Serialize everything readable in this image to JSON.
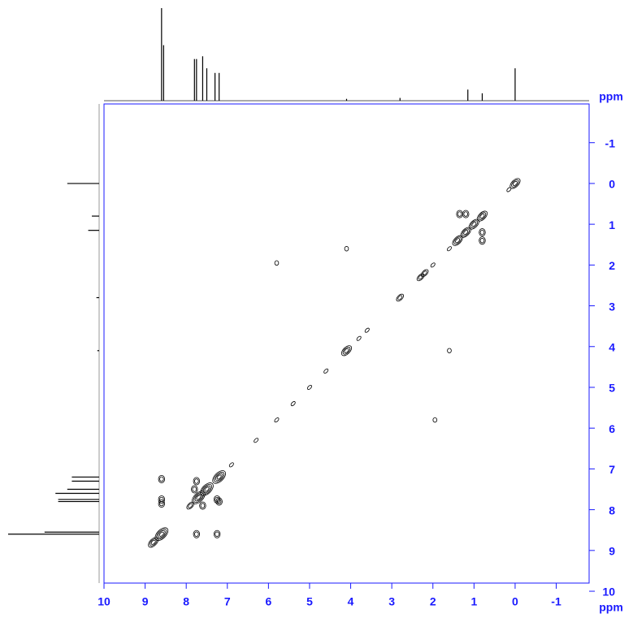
{
  "chart_data": {
    "type": "nmr-2d",
    "xlabel": "ppm",
    "ylabel": "ppm",
    "xlim": [
      10,
      -1.8
    ],
    "ylim": [
      -1.95,
      9.8
    ],
    "xticks": [
      10,
      9,
      8,
      7,
      6,
      5,
      4,
      3,
      2,
      1,
      0,
      -1
    ],
    "yticks": [
      -1,
      0,
      1,
      2,
      3,
      4,
      5,
      6,
      7,
      8,
      9,
      10
    ],
    "axis_color": "#1a1aff",
    "color": "#000000",
    "x": [
      0.0,
      0.15,
      0.8,
      1.0,
      1.2,
      1.4,
      1.6,
      2.0,
      2.2,
      2.3,
      2.8,
      3.6,
      3.8,
      4.1,
      4.6,
      5.0,
      5.4,
      5.8,
      6.3,
      6.9,
      7.2,
      7.5,
      7.7,
      7.9,
      8.6,
      8.8,
      1.2,
      1.35,
      0.8,
      0.8,
      4.1,
      1.6,
      5.8,
      1.95,
      8.6,
      8.6,
      8.6,
      7.25,
      7.75,
      7.25,
      7.75,
      7.6,
      7.2,
      7.8
    ],
    "y": [
      0.0,
      0.15,
      0.8,
      1.0,
      1.2,
      1.4,
      1.6,
      2.0,
      2.2,
      2.3,
      2.8,
      3.6,
      3.8,
      4.1,
      4.6,
      5.0,
      5.4,
      5.8,
      6.3,
      6.9,
      7.2,
      7.5,
      7.7,
      7.9,
      8.6,
      8.8,
      0.75,
      0.75,
      1.2,
      1.4,
      1.6,
      4.1,
      1.95,
      5.8,
      7.25,
      7.75,
      7.85,
      8.6,
      8.6,
      7.75,
      7.3,
      7.9,
      7.8,
      7.5
    ],
    "size": [
      3,
      1,
      3,
      3,
      3,
      3,
      1,
      1,
      2,
      2,
      2,
      1,
      1,
      3,
      1,
      1,
      1,
      1,
      1,
      1,
      4,
      4,
      4,
      2,
      4,
      3,
      2,
      2,
      2,
      2,
      1,
      1,
      1,
      1,
      2,
      2,
      2,
      2,
      2,
      2,
      2,
      2,
      2,
      2
    ],
    "projection": {
      "ppm": [
        8.6,
        8.55,
        7.8,
        7.75,
        7.6,
        7.5,
        7.3,
        7.2,
        4.1,
        2.8,
        1.15,
        0.8,
        0.0
      ],
      "intensity": [
        1.0,
        0.6,
        0.45,
        0.45,
        0.48,
        0.35,
        0.3,
        0.3,
        0.02,
        0.03,
        0.12,
        0.08,
        0.35
      ]
    }
  }
}
